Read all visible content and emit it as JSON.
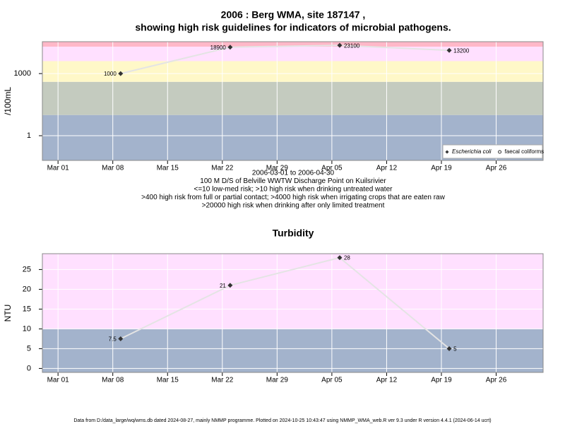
{
  "chart_data": [
    {
      "type": "line",
      "title": [
        "2006 : Berg WMA, site 187147 ,",
        "showing high risk guidelines for indicators of microbial pathogens."
      ],
      "subtitle": [
        "2006-03-01 to 2006-04-30",
        "100 M D/S of Belville WWTW Discharge Point on Kuilsrivier",
        "<=10 low-med risk; >10 high risk when drinking untreated water",
        ">400 high risk from full or partial contact; >4000 high risk when irrigating crops that are eaten raw",
        ">20000 high risk when drinking after only limited treatment"
      ],
      "y_label": "/100mL",
      "x": [
        "03-09",
        "03-23",
        "04-06",
        "04-20"
      ],
      "series": [
        {
          "name": "Escherichia coli",
          "color": "#333333",
          "marker": "diamond",
          "values": [
            1000,
            18900,
            23100,
            13200
          ]
        },
        {
          "name": "faecal coliforms",
          "color": "#333333",
          "marker": "circle",
          "values": [
            null,
            null,
            null,
            null
          ]
        }
      ],
      "line_color": "#e4e4e4",
      "log_scale": true,
      "xlim": [
        "02-27",
        "05-02"
      ],
      "xticks": [
        {
          "value": "03-01",
          "label": "Mar 01"
        },
        {
          "value": "03-08",
          "label": "Mar 08"
        },
        {
          "value": "03-15",
          "label": "Mar 15"
        },
        {
          "value": "03-22",
          "label": "Mar 22"
        },
        {
          "value": "03-29",
          "label": "Mar 29"
        },
        {
          "value": "04-05",
          "label": "Apr 05"
        },
        {
          "value": "04-12",
          "label": "Apr 12"
        },
        {
          "value": "04-19",
          "label": "Apr 19"
        },
        {
          "value": "04-26",
          "label": "Apr 26"
        }
      ],
      "ylim": [
        0.064,
        34700
      ],
      "yticks": [
        1,
        1000
      ],
      "grid": true,
      "band_breaks": [
        10,
        400,
        4000,
        20000
      ],
      "band_colors": [
        "#a3b3cc",
        "#c4cbbf",
        "#fff8c8",
        "#ffe0ff",
        "#ffb8c8"
      ],
      "legend": "bottom right"
    },
    {
      "type": "line",
      "title": [
        "Turbidity"
      ],
      "y_label": "NTU",
      "x": [
        "03-09",
        "03-23",
        "04-06",
        "04-20"
      ],
      "series": [
        {
          "color": "#333333",
          "marker": "diamond",
          "values": [
            7.5,
            21,
            28,
            5
          ]
        }
      ],
      "line_color": "#e4e4e4",
      "log_scale": false,
      "xlim": [
        "02-27",
        "05-02"
      ],
      "xticks": [
        {
          "value": "03-01",
          "label": "Mar 01"
        },
        {
          "value": "03-08",
          "label": "Mar 08"
        },
        {
          "value": "03-15",
          "label": "Mar 15"
        },
        {
          "value": "03-22",
          "label": "Mar 22"
        },
        {
          "value": "03-29",
          "label": "Mar 29"
        },
        {
          "value": "04-05",
          "label": "Apr 05"
        },
        {
          "value": "04-12",
          "label": "Apr 12"
        },
        {
          "value": "04-19",
          "label": "Apr 19"
        },
        {
          "value": "04-26",
          "label": "Apr 26"
        }
      ],
      "ylim": [
        -1,
        29
      ],
      "yticks": [
        0,
        5,
        10,
        15,
        20,
        25
      ],
      "grid": true,
      "band_breaks": [
        10
      ],
      "band_colors": [
        "#a3b3cc",
        "#ffe0ff"
      ]
    }
  ],
  "footer": "Data from D:/data_large/wq/wms.db dated 2024-08-27, mainly NMMP programme. Plotted on 2024-10-25 10:43:47 using NMMP_WMA_web.R ver 9.3 under R version 4.4.1 (2024-06-14 ucrt)"
}
